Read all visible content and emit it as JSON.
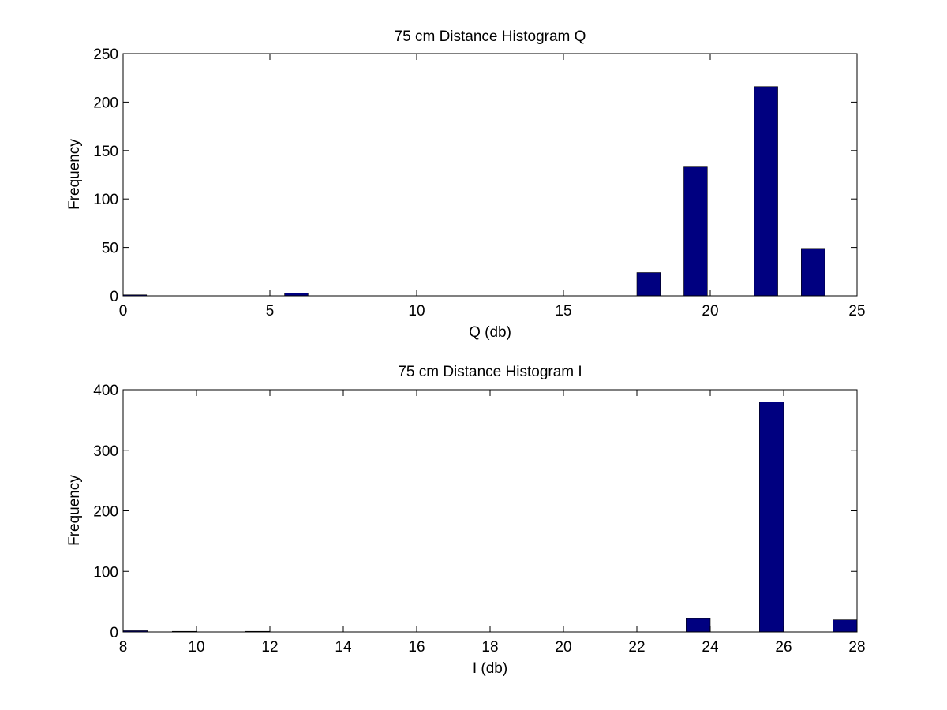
{
  "chart_data": [
    {
      "type": "bar",
      "title": "75 cm Distance Histogram Q",
      "xlabel": "Q (db)",
      "ylabel": "Frequency",
      "xlim": [
        0,
        25
      ],
      "ylim": [
        0,
        250
      ],
      "xticks": [
        0,
        5,
        10,
        15,
        20,
        25
      ],
      "yticks": [
        0,
        50,
        100,
        150,
        200,
        250
      ],
      "grid": false,
      "legend": "none",
      "bar_color": "#000080",
      "bar_width": 0.8,
      "x": [
        0.4,
        5.9,
        17.9,
        19.5,
        21.9,
        23.5
      ],
      "values": [
        1,
        3,
        24,
        133,
        216,
        49
      ]
    },
    {
      "type": "bar",
      "title": "75 cm Distance Histogram I",
      "xlabel": "I (db)",
      "ylabel": "Frequency",
      "xlim": [
        8,
        28
      ],
      "ylim": [
        0,
        400
      ],
      "xticks": [
        8,
        10,
        12,
        14,
        16,
        18,
        20,
        22,
        24,
        26,
        28
      ],
      "yticks": [
        0,
        100,
        200,
        300,
        400
      ],
      "grid": false,
      "legend": "none",
      "bar_color": "#000080",
      "bar_width": 0.66,
      "x": [
        8.33,
        9.67,
        11.67,
        23.67,
        25.67,
        27.67
      ],
      "values": [
        2,
        1,
        1,
        22,
        380,
        20
      ]
    }
  ]
}
